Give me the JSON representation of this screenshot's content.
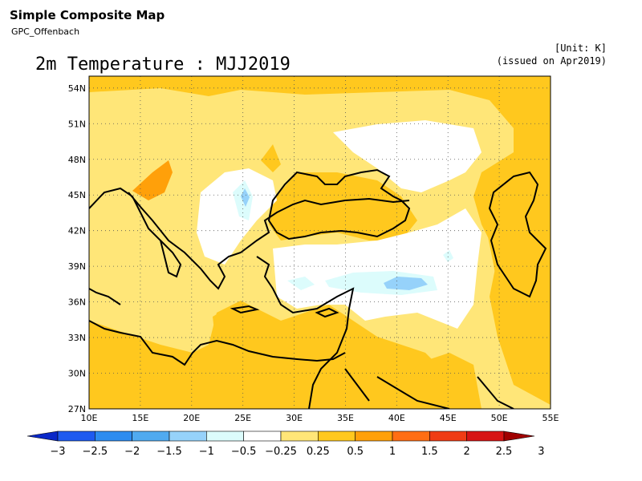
{
  "header": {
    "title": "Simple Composite Map",
    "subtitle": "GPC_Offenbach",
    "unit": "[Unit: K]",
    "issued": "(issued on Apr2019)"
  },
  "map": {
    "title": "2m Temperature : MJJ2019",
    "lon_ticks": [
      "10E",
      "15E",
      "20E",
      "25E",
      "30E",
      "35E",
      "40E",
      "45E",
      "50E",
      "55E"
    ],
    "lat_ticks": [
      "54N",
      "51N",
      "48N",
      "45N",
      "42N",
      "39N",
      "36N",
      "33N",
      "30N",
      "27N"
    ],
    "lon_range": [
      10,
      55
    ],
    "lat_range": [
      27,
      55
    ],
    "grid": "dotted"
  },
  "colorbar": {
    "labels": [
      "−3",
      "−2.5",
      "−2",
      "−1.5",
      "−1",
      "−0.5",
      "−0.25",
      "0.25",
      "0.5",
      "1",
      "1.5",
      "2",
      "2.5",
      "3"
    ],
    "colors": [
      "#0a28c8",
      "#1e5af0",
      "#2d8cf0",
      "#50aaf0",
      "#96d2fa",
      "#dcfcfc",
      "#ffffff",
      "#ffe678",
      "#ffc81e",
      "#ffa00a",
      "#ff6e14",
      "#f03c14",
      "#d71414",
      "#a00000"
    ]
  }
}
